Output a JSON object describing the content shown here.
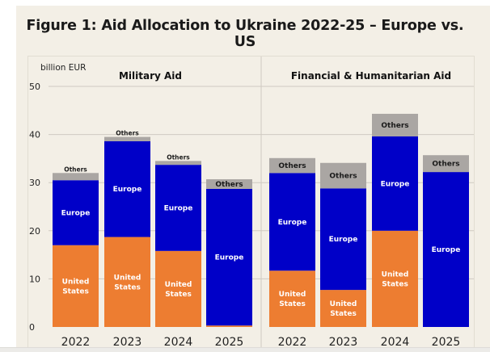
{
  "figure": {
    "title": "Figure 1: Aid Allocation to Ukraine 2022-25 – Europe vs. US"
  },
  "colors": {
    "us": "#ed7d31",
    "europe": "#0000c8",
    "others": "#aaa6a3",
    "background": "#f3efe6",
    "grid": "#cfcac1"
  },
  "chart_data": {
    "type": "bar",
    "stacked": true,
    "title": "Figure 1: Aid Allocation to Ukraine 2022-25 – Europe vs. US",
    "ylabel": "billion EUR",
    "xlabel": "",
    "ylim": [
      0,
      50
    ],
    "yticks": [
      0,
      10,
      20,
      30,
      40,
      50
    ],
    "grid": true,
    "legend": "inline segment labels",
    "stack_order": [
      "United States",
      "Europe",
      "Others"
    ],
    "panels": [
      {
        "title": "Military Aid",
        "categories": [
          "2022",
          "2023",
          "2024",
          "2025"
        ],
        "series": [
          {
            "name": "United States",
            "label": "United\nStates",
            "values": [
              17.0,
              18.7,
              15.8,
              0.3
            ]
          },
          {
            "name": "Europe",
            "label": "Europe",
            "values": [
              13.5,
              19.9,
              17.9,
              28.4
            ]
          },
          {
            "name": "Others",
            "label": "Others",
            "values": [
              1.5,
              0.9,
              0.8,
              2.0
            ]
          }
        ]
      },
      {
        "title": "Financial & Humanitarian Aid",
        "categories": [
          "2022",
          "2023",
          "2024",
          "2025"
        ],
        "series": [
          {
            "name": "United States",
            "label": "United\nStates",
            "values": [
              11.7,
              7.7,
              20.0,
              0.0
            ]
          },
          {
            "name": "Europe",
            "label": "Europe",
            "values": [
              20.3,
              21.1,
              19.6,
              32.2
            ]
          },
          {
            "name": "Others",
            "label": "Others",
            "values": [
              3.1,
              5.3,
              4.7,
              3.5
            ]
          }
        ]
      }
    ]
  }
}
